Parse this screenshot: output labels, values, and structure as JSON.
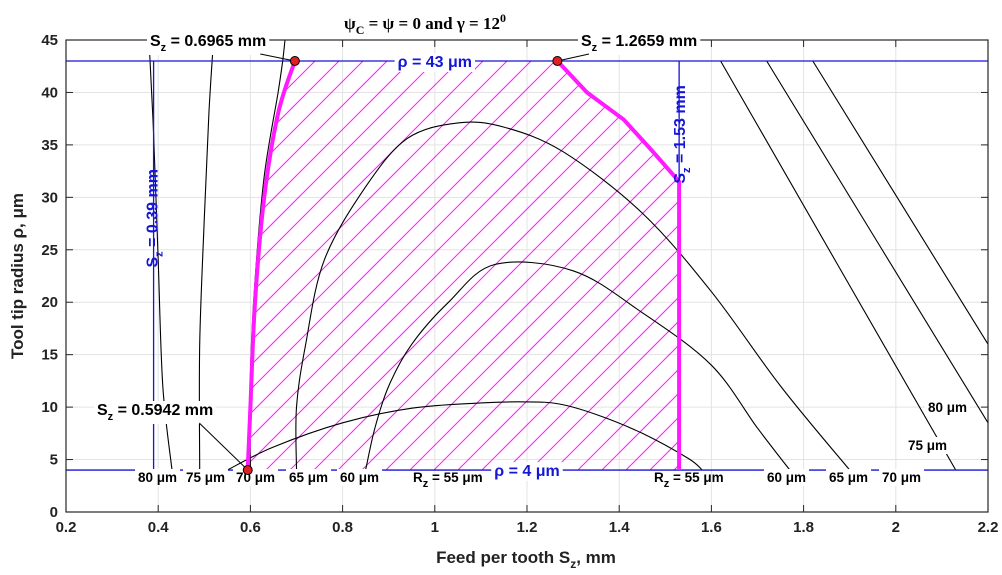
{
  "chart_data": {
    "type": "line",
    "title": "ψC = ψ = 0 and γ = 12⁰",
    "xlabel": "Feed per tooth Sz, mm",
    "ylabel": "Tool tip radius ρ, μm",
    "xlim": [
      0.2,
      2.2
    ],
    "ylim": [
      0,
      45
    ],
    "xticks": [
      "0.2",
      "0.4",
      "0.6",
      "0.8",
      "1",
      "1.2",
      "1.4",
      "1.6",
      "1.8",
      "2",
      "2.2"
    ],
    "yticks": [
      "0",
      "5",
      "10",
      "15",
      "20",
      "25",
      "30",
      "35",
      "40",
      "45"
    ],
    "grid": true,
    "contours": [
      {
        "label": "Rz = 55 μm",
        "inner_label": "Rz = 55 μm",
        "points": [
          [
            0.55,
            4
          ],
          [
            0.65,
            6.2
          ],
          [
            0.8,
            8.5
          ],
          [
            0.95,
            9.9
          ],
          [
            1.1,
            10.4
          ],
          [
            1.2,
            10.5
          ],
          [
            1.27,
            10.3
          ],
          [
            1.35,
            9.3
          ],
          [
            1.45,
            7.5
          ],
          [
            1.55,
            5.1
          ],
          [
            1.58,
            4
          ]
        ]
      },
      {
        "label": "60 μm",
        "points": [
          [
            0.85,
            4
          ],
          [
            0.87,
            8
          ],
          [
            0.9,
            12
          ],
          [
            0.95,
            16
          ],
          [
            1.03,
            20
          ],
          [
            1.13,
            23.6
          ],
          [
            1.3,
            23
          ],
          [
            1.45,
            19
          ],
          [
            1.6,
            14
          ],
          [
            1.7,
            8
          ],
          [
            1.77,
            4
          ]
        ]
      },
      {
        "label": "65 μm",
        "points": [
          [
            0.7,
            4
          ],
          [
            0.7,
            10
          ],
          [
            0.72,
            16
          ],
          [
            0.76,
            24
          ],
          [
            0.85,
            31
          ],
          [
            0.94,
            35.6
          ],
          [
            1.05,
            37.1
          ],
          [
            1.15,
            36.7
          ],
          [
            1.28,
            34.3
          ],
          [
            1.45,
            28.5
          ],
          [
            1.6,
            21
          ],
          [
            1.75,
            12
          ],
          [
            1.9,
            4
          ]
        ]
      },
      {
        "label": "70 μm",
        "points": [
          [
            0.6,
            4
          ],
          [
            0.6,
            13
          ],
          [
            0.61,
            22
          ],
          [
            0.63,
            32
          ],
          [
            0.66,
            40
          ],
          [
            0.67,
            43
          ],
          [
            0.675,
            45
          ]
        ]
      },
      {
        "label": "75 μm",
        "points": [
          [
            0.49,
            4
          ],
          [
            0.49,
            16
          ],
          [
            0.5,
            28
          ],
          [
            0.51,
            38
          ],
          [
            0.52,
            45
          ]
        ]
      },
      {
        "label": "80 μm",
        "points": [
          [
            0.43,
            4
          ],
          [
            0.41,
            12
          ],
          [
            0.4,
            24
          ],
          [
            0.39,
            36
          ],
          [
            0.38,
            45
          ]
        ]
      },
      {
        "label": "70 μm",
        "points": [
          [
            1.62,
            43
          ],
          [
            2.13,
            4
          ]
        ]
      },
      {
        "label": "75 μm",
        "points": [
          [
            1.72,
            43
          ],
          [
            2.2,
            8.5
          ]
        ]
      },
      {
        "label": "80 μm",
        "points": [
          [
            1.82,
            43
          ],
          [
            2.2,
            16
          ]
        ]
      }
    ],
    "constraints": [
      {
        "label": "ρ = 43 μm",
        "orientation": "horizontal",
        "value": 43
      },
      {
        "label": "ρ = 4 μm",
        "orientation": "horizontal",
        "value": 4
      },
      {
        "label": "Sz = 0.39 mm",
        "orientation": "vertical",
        "value": 0.39
      },
      {
        "label": "Sz = 1.53 mm",
        "orientation": "vertical",
        "value": 1.53
      }
    ],
    "feasible_region": [
      [
        0.5942,
        4
      ],
      [
        0.6,
        10
      ],
      [
        0.61,
        20
      ],
      [
        0.63,
        30
      ],
      [
        0.66,
        38
      ],
      [
        0.6965,
        43
      ],
      [
        1.2659,
        43
      ],
      [
        1.33,
        40
      ],
      [
        1.41,
        37.4
      ],
      [
        1.47,
        34.5
      ],
      [
        1.53,
        31.5
      ],
      [
        1.53,
        4
      ]
    ],
    "key_points": [
      {
        "label": "Sz = 0.6965 mm",
        "x": 0.6965,
        "y": 43
      },
      {
        "label": "Sz = 1.2659 mm",
        "x": 1.2659,
        "y": 43
      },
      {
        "label": "Sz = 0.5942 mm",
        "x": 0.5942,
        "y": 4
      }
    ],
    "colors": {
      "region": "#ff1aff",
      "constraint": "#1515d6",
      "contour": "#000000",
      "point": "#e02020"
    }
  }
}
